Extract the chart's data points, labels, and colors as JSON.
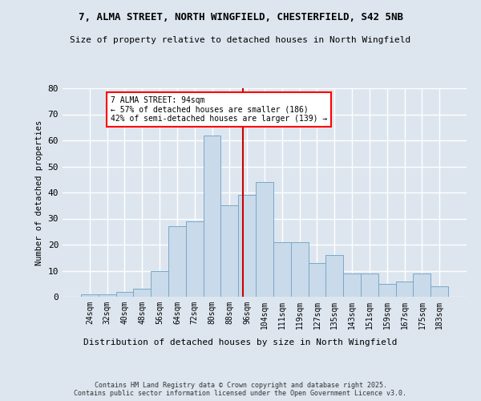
{
  "title1": "7, ALMA STREET, NORTH WINGFIELD, CHESTERFIELD, S42 5NB",
  "title2": "Size of property relative to detached houses in North Wingfield",
  "categories": [
    "24sqm",
    "32sqm",
    "40sqm",
    "48sqm",
    "56sqm",
    "64sqm",
    "72sqm",
    "80sqm",
    "88sqm",
    "96sqm",
    "104sqm",
    "111sqm",
    "119sqm",
    "127sqm",
    "135sqm",
    "143sqm",
    "151sqm",
    "159sqm",
    "167sqm",
    "175sqm",
    "183sqm"
  ],
  "bar_values": [
    1,
    1,
    2,
    3,
    10,
    27,
    29,
    62,
    35,
    39,
    44,
    21,
    21,
    13,
    16,
    9,
    9,
    5,
    6,
    9,
    4
  ],
  "bar_color": "#c9daea",
  "bar_edge_color": "#7aa8c8",
  "background_color": "#dde6ef",
  "plot_background": "#dde6ef",
  "grid_color": "#ffffff",
  "vline_color": "#cc0000",
  "annotation_title": "7 ALMA STREET: 94sqm",
  "annotation_line1": "← 57% of detached houses are smaller (186)",
  "annotation_line2": "42% of semi-detached houses are larger (139) →",
  "xlabel": "Distribution of detached houses by size in North Wingfield",
  "ylabel": "Number of detached properties",
  "ylim": [
    0,
    80
  ],
  "yticks": [
    0,
    10,
    20,
    30,
    40,
    50,
    60,
    70,
    80
  ],
  "footer1": "Contains HM Land Registry data © Crown copyright and database right 2025.",
  "footer2": "Contains public sector information licensed under the Open Government Licence v3.0."
}
